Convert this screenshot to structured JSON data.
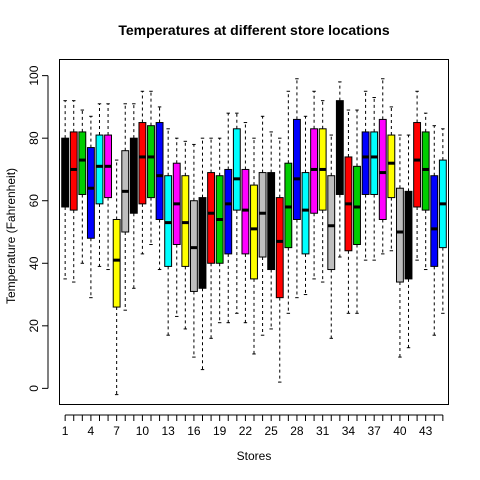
{
  "chart_data": {
    "type": "boxplot",
    "title": "Temperatures at different store locations",
    "xlabel": "Stores",
    "ylabel": "Temperature (Fahrenheit)",
    "ylim": [
      -5,
      105
    ],
    "yticks": [
      0,
      20,
      40,
      60,
      80,
      100
    ],
    "xtick_labels": [
      "1",
      "4",
      "7",
      "10",
      "13",
      "16",
      "19",
      "22",
      "25",
      "28",
      "31",
      "34",
      "37",
      "40",
      "43"
    ],
    "xtick_positions": [
      1,
      4,
      7,
      10,
      13,
      16,
      19,
      22,
      25,
      28,
      31,
      34,
      37,
      40,
      43
    ],
    "color_cycle": [
      "#000000",
      "#ff0000",
      "#00cd00",
      "#0000ff",
      "#00ffff",
      "#ff00ff",
      "#ffff00",
      "#bebebe"
    ],
    "boxes": [
      {
        "store": 1,
        "min": 35,
        "q1": 58,
        "median": 70,
        "q3": 80,
        "max": 92
      },
      {
        "store": 2,
        "min": 34,
        "q1": 57,
        "median": 70,
        "q3": 82,
        "max": 92
      },
      {
        "store": 3,
        "min": 40,
        "q1": 62,
        "median": 73,
        "q3": 82,
        "max": 89
      },
      {
        "store": 4,
        "min": 29,
        "q1": 48,
        "median": 64,
        "q3": 77,
        "max": 87
      },
      {
        "store": 5,
        "min": 39,
        "q1": 59,
        "median": 71,
        "q3": 81,
        "max": 91
      },
      {
        "store": 6,
        "min": 38,
        "q1": 61,
        "median": 71,
        "q3": 81,
        "max": 91
      },
      {
        "store": 7,
        "min": -2,
        "q1": 26,
        "median": 41,
        "q3": 54,
        "max": 73
      },
      {
        "store": 8,
        "min": 25,
        "q1": 50,
        "median": 63,
        "q3": 76,
        "max": 91
      },
      {
        "store": 9,
        "min": 32,
        "q1": 56,
        "median": 68,
        "q3": 80,
        "max": 91
      },
      {
        "store": 10,
        "min": 43,
        "q1": 59,
        "median": 74,
        "q3": 85,
        "max": 95
      },
      {
        "store": 11,
        "min": 46,
        "q1": 61,
        "median": 74,
        "q3": 84,
        "max": 95
      },
      {
        "store": 12,
        "min": 38,
        "q1": 54,
        "median": 68,
        "q3": 85,
        "max": 90
      },
      {
        "store": 13,
        "min": 17,
        "q1": 39,
        "median": 53,
        "q3": 68,
        "max": 83
      },
      {
        "store": 14,
        "min": 23,
        "q1": 46,
        "median": 59,
        "q3": 72,
        "max": 80
      },
      {
        "store": 15,
        "min": 19,
        "q1": 39,
        "median": 53,
        "q3": 68,
        "max": 79
      },
      {
        "store": 16,
        "min": 10,
        "q1": 31,
        "median": 45,
        "q3": 60,
        "max": 78
      },
      {
        "store": 17,
        "min": 6,
        "q1": 32,
        "median": 45,
        "q3": 61,
        "max": 80
      },
      {
        "store": 18,
        "min": 16,
        "q1": 40,
        "median": 56,
        "q3": 69,
        "max": 80
      },
      {
        "store": 19,
        "min": 21,
        "q1": 40,
        "median": 54,
        "q3": 68,
        "max": 80
      },
      {
        "store": 20,
        "min": 21,
        "q1": 43,
        "median": 59,
        "q3": 70,
        "max": 88
      },
      {
        "store": 21,
        "min": 24,
        "q1": 57,
        "median": 67,
        "q3": 83,
        "max": 88
      },
      {
        "store": 22,
        "min": 21,
        "q1": 43,
        "median": 57,
        "q3": 70,
        "max": 85
      },
      {
        "store": 23,
        "min": 11,
        "q1": 35,
        "median": 51,
        "q3": 65,
        "max": 80
      },
      {
        "store": 24,
        "min": 17,
        "q1": 42,
        "median": 56,
        "q3": 69,
        "max": 87
      },
      {
        "store": 25,
        "min": 19,
        "q1": 38,
        "median": 56,
        "q3": 69,
        "max": 82
      },
      {
        "store": 26,
        "min": 2,
        "q1": 29,
        "median": 47,
        "q3": 61,
        "max": 80
      },
      {
        "store": 27,
        "min": 24,
        "q1": 45,
        "median": 58,
        "q3": 72,
        "max": 95
      },
      {
        "store": 28,
        "min": 29,
        "q1": 54,
        "median": 67,
        "q3": 86,
        "max": 99
      },
      {
        "store": 29,
        "min": 30,
        "q1": 43,
        "median": 57,
        "q3": 69,
        "max": 87
      },
      {
        "store": 30,
        "min": 35,
        "q1": 56,
        "median": 70,
        "q3": 83,
        "max": 95
      },
      {
        "store": 31,
        "min": 34,
        "q1": 57,
        "median": 70,
        "q3": 83,
        "max": 92
      },
      {
        "store": 32,
        "min": 16,
        "q1": 38,
        "median": 52,
        "q3": 68,
        "max": 81
      },
      {
        "store": 33,
        "min": 42,
        "q1": 62,
        "median": 76,
        "q3": 92,
        "max": 98
      },
      {
        "store": 34,
        "min": 24,
        "q1": 44,
        "median": 59,
        "q3": 74,
        "max": 89
      },
      {
        "store": 35,
        "min": 24,
        "q1": 46,
        "median": 58,
        "q3": 71,
        "max": 89
      },
      {
        "store": 36,
        "min": 41,
        "q1": 62,
        "median": 74,
        "q3": 82,
        "max": 95
      },
      {
        "store": 37,
        "min": 41,
        "q1": 62,
        "median": 74,
        "q3": 82,
        "max": 93
      },
      {
        "store": 38,
        "min": 43,
        "q1": 54,
        "median": 69,
        "q3": 86,
        "max": 99
      },
      {
        "store": 39,
        "min": 44,
        "q1": 61,
        "median": 72,
        "q3": 81,
        "max": 90
      },
      {
        "store": 40,
        "min": 10,
        "q1": 34,
        "median": 50,
        "q3": 64,
        "max": 81
      },
      {
        "store": 41,
        "min": 13,
        "q1": 35,
        "median": 51,
        "q3": 63,
        "max": 81
      },
      {
        "store": 42,
        "min": 41,
        "q1": 58,
        "median": 73,
        "q3": 85,
        "max": 95
      },
      {
        "store": 43,
        "min": 38,
        "q1": 57,
        "median": 70,
        "q3": 82,
        "max": 88
      },
      {
        "store": 44,
        "min": 17,
        "q1": 39,
        "median": 51,
        "q3": 68,
        "max": 84
      },
      {
        "store": 45,
        "min": 24,
        "q1": 45,
        "median": 59,
        "q3": 73,
        "max": 83
      }
    ]
  }
}
